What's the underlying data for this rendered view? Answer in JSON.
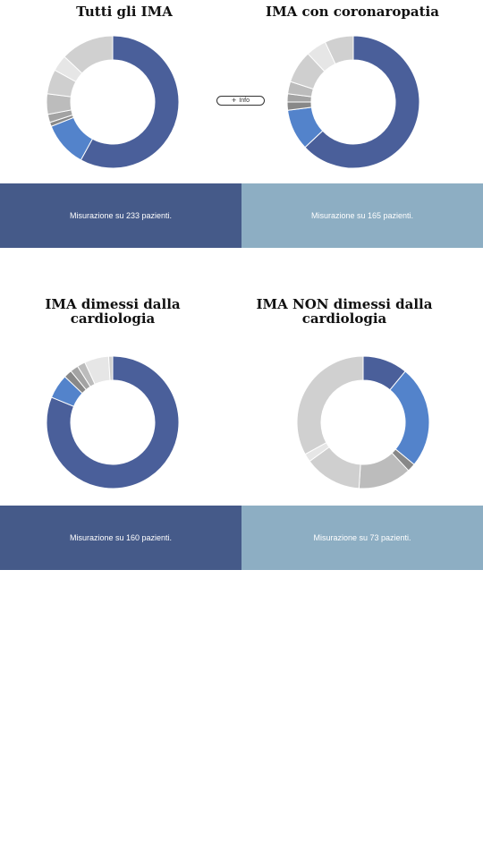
{
  "info_button": {
    "icon": "plus-icon",
    "plus": "+",
    "label": "Info"
  },
  "colors": {
    "dark_band": "#455a89",
    "light_band": "#8daec3",
    "palette": [
      "#4a5f9a",
      "#5383cb",
      "#888888",
      "#a3a3a3",
      "#bcbcbc",
      "#cfcfcf",
      "#e6e6e6",
      "#d0d0d0"
    ]
  },
  "charts": [
    {
      "title": "Tutti gli IMA",
      "caption": "Misurazione su 233 pazienti."
    },
    {
      "title": "IMA con coronaropatia",
      "caption": "Misurazione su 165 pazienti."
    },
    {
      "title": "IMA dimessi dalla cardiologia",
      "caption": "Misurazione su 160 pazienti."
    },
    {
      "title": "IMA NON dimessi dalla cardiologia",
      "caption": "Misurazione su 73 pazienti."
    }
  ],
  "chart_data": [
    {
      "type": "pie",
      "title": "Tutti gli IMA",
      "values": [
        58,
        11,
        1,
        2,
        5,
        6,
        4,
        13
      ],
      "colors": [
        "#4a5f9a",
        "#5383cb",
        "#888888",
        "#a3a3a3",
        "#bcbcbc",
        "#cfcfcf",
        "#e6e6e6",
        "#d0d0d0"
      ]
    },
    {
      "type": "pie",
      "title": "IMA con coronaropatia",
      "values": [
        63,
        10,
        2,
        2,
        3,
        8,
        5,
        7
      ],
      "colors": [
        "#4a5f9a",
        "#5383cb",
        "#888888",
        "#a3a3a3",
        "#bcbcbc",
        "#cfcfcf",
        "#e6e6e6",
        "#d0d0d0"
      ]
    },
    {
      "type": "pie",
      "title": "IMA dimessi dalla cardiologia",
      "values": [
        82,
        6,
        2,
        2,
        2,
        6,
        1
      ],
      "colors": [
        "#4a5f9a",
        "#5383cb",
        "#888888",
        "#a3a3a3",
        "#bcbcbc",
        "#e6e6e6",
        "#d0d0d0"
      ]
    },
    {
      "type": "pie",
      "title": "IMA NON dimessi dalla cardiologia",
      "values": [
        11,
        25,
        2,
        13,
        14,
        2,
        33
      ],
      "colors": [
        "#4a5f9a",
        "#5383cb",
        "#888888",
        "#bcbcbc",
        "#cfcfcf",
        "#e6e6e6",
        "#d0d0d0"
      ]
    }
  ]
}
